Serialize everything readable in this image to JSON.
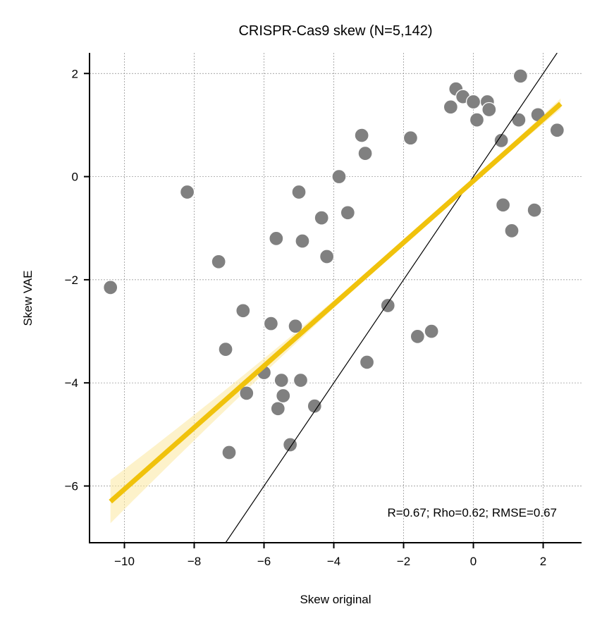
{
  "chart_data": {
    "type": "scatter",
    "title": "CRISPR-Cas9 skew (N=5,142)",
    "xlabel": "Skew original",
    "ylabel": "Skew VAE",
    "xlim": [
      -11.0,
      3.1
    ],
    "ylim": [
      -7.1,
      2.4
    ],
    "xticks": [
      -10,
      -8,
      -6,
      -4,
      -2,
      0,
      2
    ],
    "yticks": [
      -6,
      -4,
      -2,
      0,
      2
    ],
    "xtick_labels": [
      "−10",
      "−8",
      "−6",
      "−4",
      "−2",
      "0",
      "2"
    ],
    "ytick_labels": [
      "−6",
      "−4",
      "−2",
      "0",
      "2"
    ],
    "grid": true,
    "annotation": "R=0.67; Rho=0.62; RMSE=0.67",
    "identity_line": true,
    "regression": {
      "slope": 0.598,
      "intercept": -0.083,
      "x_range": [
        -10.4,
        2.5
      ],
      "color": "#f0c20c",
      "ci_color": "#fbeaa6"
    },
    "point_color": "#808080",
    "series": [
      {
        "points": [
          [
            -10.4,
            -2.15
          ],
          [
            -8.2,
            -0.3
          ],
          [
            -7.3,
            -1.65
          ],
          [
            -7.1,
            -3.35
          ],
          [
            -7.0,
            -5.35
          ],
          [
            -6.6,
            -2.6
          ],
          [
            -6.5,
            -4.2
          ],
          [
            -6.0,
            -3.8
          ],
          [
            -5.8,
            -2.85
          ],
          [
            -5.65,
            -1.2
          ],
          [
            -5.6,
            -4.5
          ],
          [
            -5.45,
            -4.25
          ],
          [
            -5.5,
            -3.95
          ],
          [
            -5.25,
            -5.2
          ],
          [
            -5.1,
            -2.9
          ],
          [
            -5.0,
            -0.3
          ],
          [
            -4.95,
            -3.95
          ],
          [
            -4.9,
            -1.25
          ],
          [
            -4.55,
            -4.45
          ],
          [
            -4.35,
            -0.8
          ],
          [
            -4.2,
            -1.55
          ],
          [
            -3.85,
            -0.0
          ],
          [
            -3.6,
            -0.7
          ],
          [
            -3.2,
            0.8
          ],
          [
            -3.1,
            0.45
          ],
          [
            -3.05,
            -3.6
          ],
          [
            -2.45,
            -2.5
          ],
          [
            -1.6,
            -3.1
          ],
          [
            -1.8,
            0.75
          ],
          [
            -1.2,
            -3.0
          ],
          [
            0.4,
            1.45
          ],
          [
            0.45,
            1.3
          ],
          [
            0.85,
            -0.55
          ],
          [
            1.1,
            -1.05
          ],
          [
            1.3,
            1.1
          ],
          [
            1.35,
            1.95
          ],
          [
            1.75,
            -0.65
          ],
          [
            1.85,
            1.2
          ],
          [
            2.4,
            0.9
          ],
          [
            0.8,
            0.7
          ],
          [
            0.1,
            1.1
          ],
          [
            -0.5,
            1.7
          ],
          [
            -0.3,
            1.55
          ],
          [
            0.0,
            1.45
          ],
          [
            -0.65,
            1.35
          ]
        ]
      }
    ]
  }
}
